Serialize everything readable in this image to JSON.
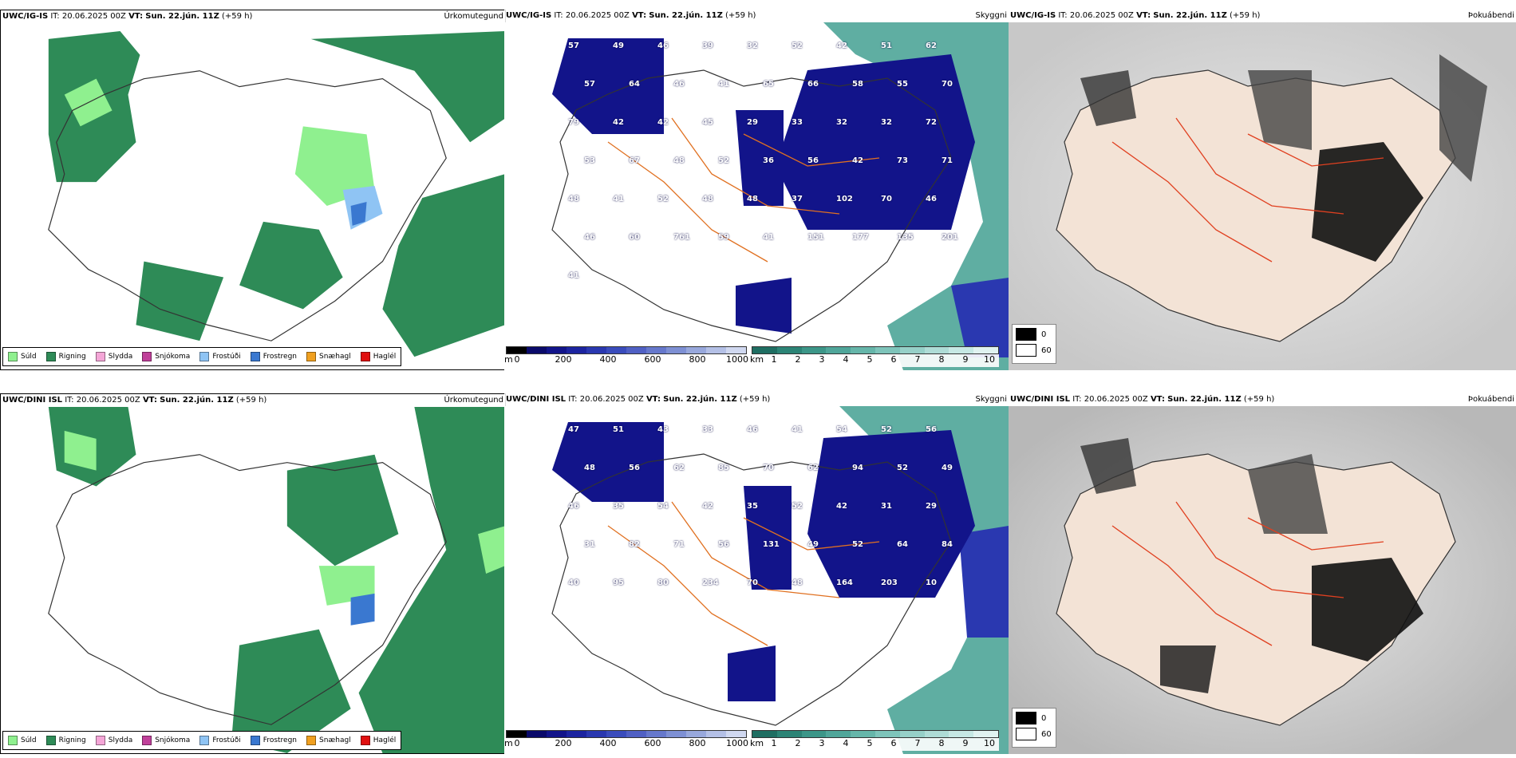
{
  "rows": [
    {
      "header_model": "UWC/IG-IS",
      "header_it": "IT: 20.06.2025 00Z",
      "header_vt_label": "VT:",
      "header_vt": "Sun. 22.jún. 11Z",
      "header_lead": "(+59 h)",
      "precip_title": "Úrkomutegund",
      "cloud_title": "Skyggni",
      "fog_title": "Þokuábendi",
      "cloud_numbers": [
        "57",
        "49",
        "46",
        "39",
        "32",
        "52",
        "42",
        "51",
        "62",
        "57",
        "64",
        "46",
        "41",
        "65",
        "66",
        "58",
        "55",
        "70",
        "79",
        "42",
        "42",
        "45",
        "29",
        "33",
        "32",
        "32",
        "72",
        "53",
        "67",
        "48",
        "52",
        "36",
        "56",
        "42",
        "73",
        "71",
        "48",
        "41",
        "52",
        "48",
        "48",
        "37",
        "102",
        "70",
        "46",
        "46",
        "60",
        "761",
        "59",
        "41",
        "151",
        "177",
        "135",
        "201",
        "41"
      ]
    },
    {
      "header_model": "UWC/DINI ISL",
      "header_it": "IT: 20.06.2025 00Z",
      "header_vt_label": "VT:",
      "header_vt": "Sun. 22.jún. 11Z",
      "header_lead": "(+59 h)",
      "precip_title": "Úrkomutegund",
      "cloud_title": "Skyggni",
      "fog_title": "Þokuábendi",
      "cloud_numbers": [
        "47",
        "51",
        "43",
        "33",
        "46",
        "41",
        "54",
        "52",
        "56",
        "48",
        "56",
        "62",
        "85",
        "70",
        "62",
        "94",
        "52",
        "49",
        "46",
        "35",
        "54",
        "42",
        "35",
        "52",
        "42",
        "31",
        "29",
        "31",
        "82",
        "71",
        "56",
        "131",
        "49",
        "52",
        "64",
        "84",
        "40",
        "95",
        "80",
        "234",
        "70",
        "48",
        "164",
        "203",
        "10"
      ]
    }
  ],
  "precip_legend": [
    {
      "label": "Súld",
      "color": "#8ff08f"
    },
    {
      "label": "Rigning",
      "color": "#2e8b57"
    },
    {
      "label": "Slydda",
      "color": "#f4a6d7"
    },
    {
      "label": "Snjókoma",
      "color": "#c0409a"
    },
    {
      "label": "Frostúði",
      "color": "#8fc4f4"
    },
    {
      "label": "Frostregn",
      "color": "#3a78d0"
    },
    {
      "label": "Snæhagl",
      "color": "#f0a020"
    },
    {
      "label": "Haglél",
      "color": "#e01010"
    }
  ],
  "cbar_m": {
    "unit": "m",
    "ticks": [
      "0",
      "200",
      "400",
      "600",
      "800",
      "1000"
    ],
    "colors": [
      "#000000",
      "#0a0a6a",
      "#12148a",
      "#1c24a0",
      "#2a38b0",
      "#3a4cbc",
      "#5060c4",
      "#6678cc",
      "#7e90d4",
      "#98a8dc",
      "#b4c0e6",
      "#d0d8f0"
    ]
  },
  "cbar_km": {
    "unit": "km",
    "ticks": [
      "1",
      "2",
      "3",
      "4",
      "5",
      "6",
      "7",
      "8",
      "9",
      "10"
    ],
    "colors": [
      "#1f6e62",
      "#2c8476",
      "#3c9688",
      "#50a69a",
      "#66b6aa",
      "#7ec4ba",
      "#96d0c8",
      "#aedcd6",
      "#c6e8e4",
      "#e0f2f0"
    ]
  },
  "fog_legend": [
    {
      "label": "0",
      "color": "#000000"
    },
    {
      "label": "60",
      "color": "#ffffff"
    }
  ]
}
